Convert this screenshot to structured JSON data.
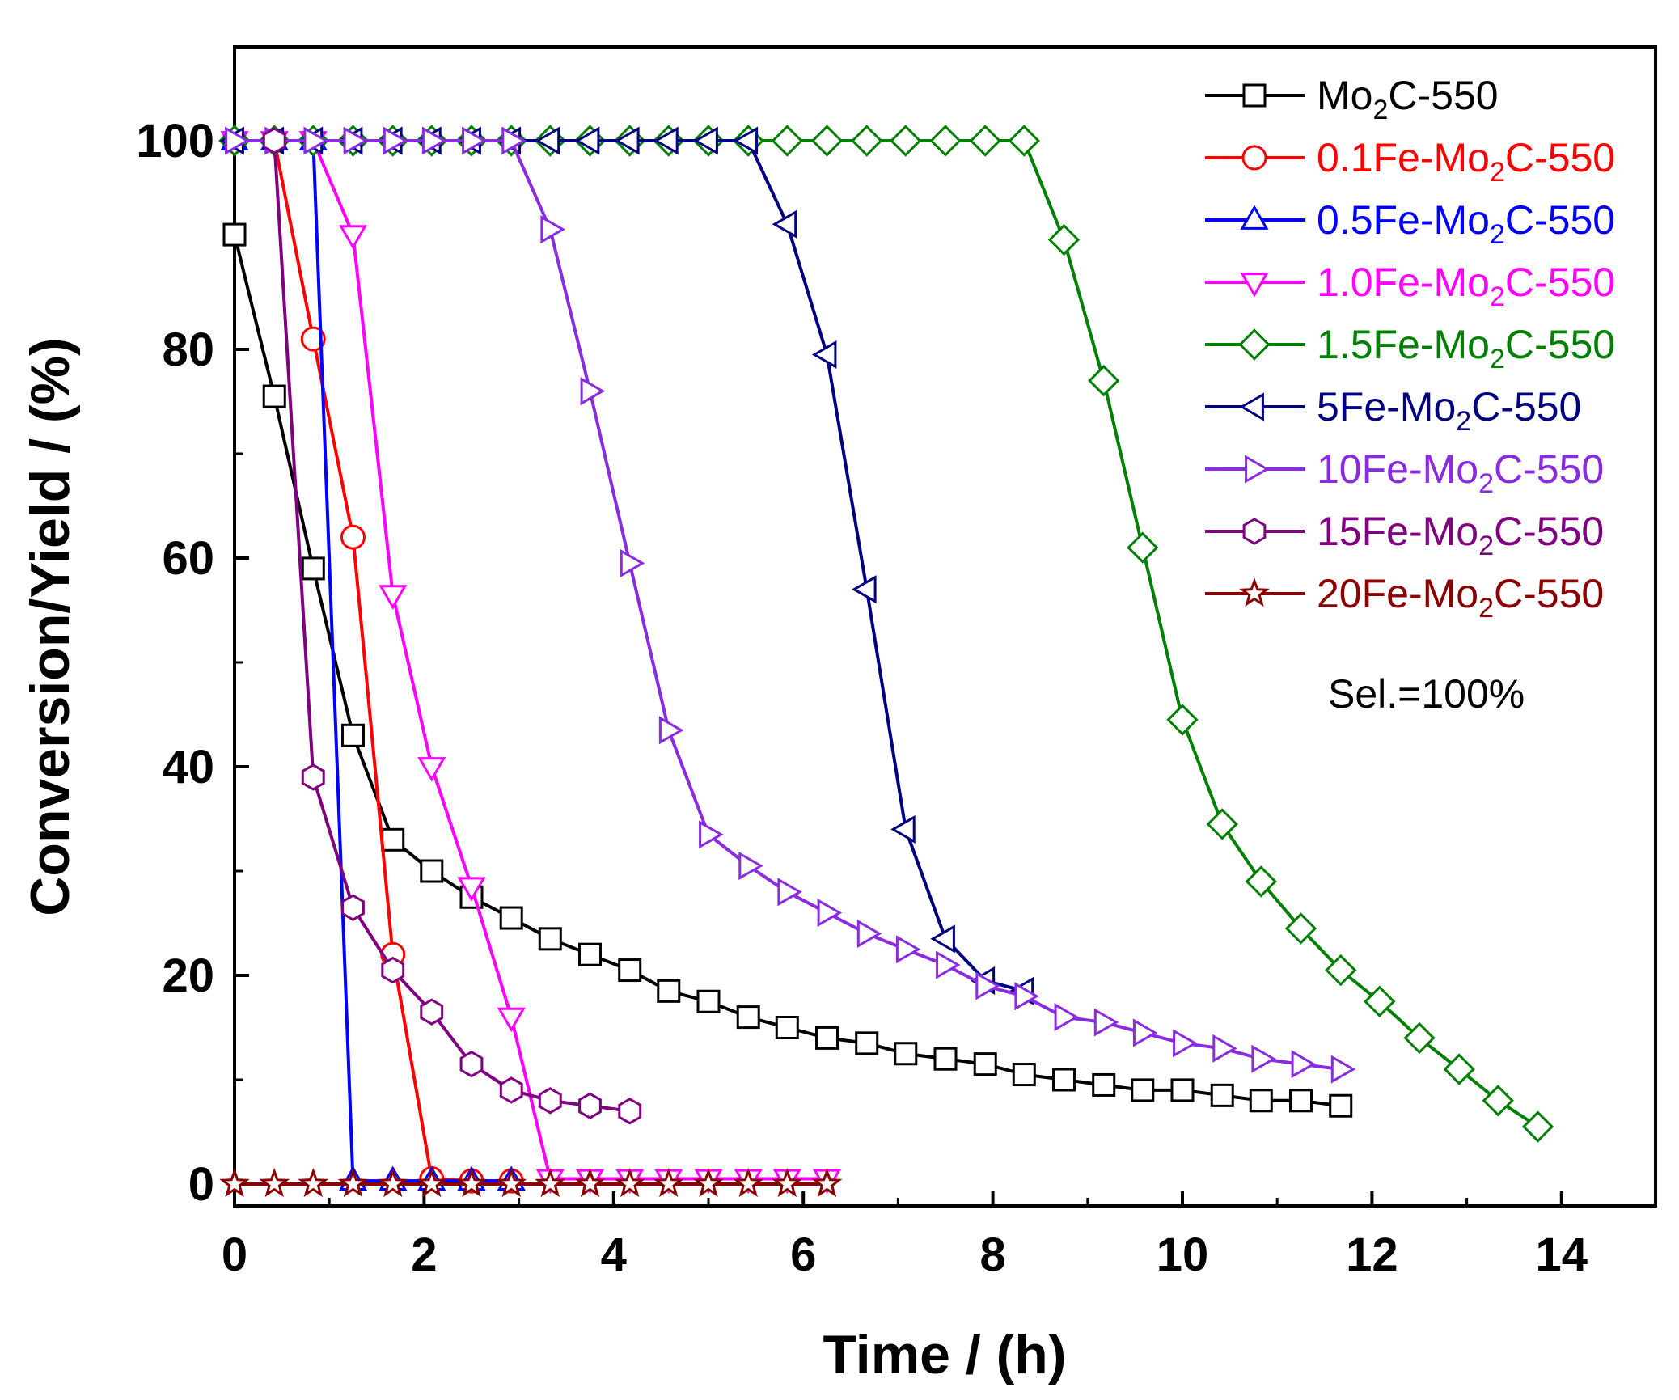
{
  "chart_data": {
    "type": "line",
    "xlabel": "Time / (h)",
    "ylabel": "Conversion/Yield / (%)",
    "xlim": [
      0,
      15
    ],
    "ylim": [
      -3,
      110
    ],
    "xticks": [
      "0",
      "2",
      "4",
      "6",
      "8",
      "10",
      "12",
      "14"
    ],
    "yticks": [
      "0",
      "20",
      "40",
      "60",
      "80",
      "100"
    ],
    "annotation": "Sel.=100%",
    "series": [
      {
        "name": "Mo2C-550",
        "label_prefix": "Mo",
        "label_sub": "2",
        "label_suffix": "C-550",
        "color": "#000000",
        "marker": "square",
        "marker_fill": "#ffffff",
        "x": [
          0,
          0.42,
          0.83,
          1.25,
          1.67,
          2.08,
          2.5,
          2.92,
          3.33,
          3.75,
          4.17,
          4.58,
          5.0,
          5.42,
          5.83,
          6.25,
          6.67,
          7.08,
          7.5,
          7.92,
          8.33,
          8.75,
          9.17,
          9.58,
          10.0,
          10.42,
          10.83,
          11.25,
          11.67
        ],
        "y": [
          91,
          75.5,
          59,
          43,
          33,
          30,
          27.5,
          25.5,
          23.5,
          22,
          20.5,
          18.5,
          17.5,
          16,
          15,
          14,
          13.5,
          12.5,
          12,
          11.5,
          10.5,
          10,
          9.5,
          9,
          9,
          8.5,
          8,
          8,
          7.5
        ]
      },
      {
        "name": "0.1Fe-Mo2C-550",
        "label_prefix": "0.1Fe-Mo",
        "label_sub": "2",
        "label_suffix": "C-550",
        "color": "#ff0000",
        "marker": "circle",
        "marker_fill": "#ffffff",
        "x": [
          0,
          0.42,
          0.83,
          1.25,
          1.67,
          2.08,
          2.5,
          2.92
        ],
        "y": [
          100,
          100,
          81,
          62,
          22,
          0.5,
          0.3,
          0.3
        ]
      },
      {
        "name": "0.5Fe-Mo2C-550",
        "label_prefix": "0.5Fe-Mo",
        "label_sub": "2",
        "label_suffix": "C-550",
        "color": "#0000ff",
        "marker": "triangle-up",
        "marker_fill": "#ffffff",
        "x": [
          0,
          0.42,
          0.83,
          1.25,
          1.67,
          2.08,
          2.5,
          2.92
        ],
        "y": [
          100,
          100,
          100,
          0.3,
          0.3,
          0.3,
          0.3,
          0.3
        ]
      },
      {
        "name": "1.0Fe-Mo2C-550",
        "label_prefix": "1.0Fe-Mo",
        "label_sub": "2",
        "label_suffix": "C-550",
        "color": "#ff00ff",
        "marker": "triangle-down",
        "marker_fill": "#ffffff",
        "x": [
          0,
          0.42,
          0.83,
          1.25,
          1.67,
          2.08,
          2.5,
          2.92,
          3.33,
          3.75,
          4.17,
          4.58,
          5.0,
          5.42,
          5.83,
          6.25
        ],
        "y": [
          100,
          100,
          100,
          91,
          56.5,
          40,
          28.5,
          16,
          0.5,
          0.5,
          0.5,
          0.5,
          0.5,
          0.5,
          0.5,
          0.5
        ]
      },
      {
        "name": "1.5Fe-Mo2C-550",
        "label_prefix": "1.5Fe-Mo",
        "label_sub": "2",
        "label_suffix": "C-550",
        "color": "#008000",
        "marker": "diamond",
        "marker_fill": "#ffffff",
        "x": [
          0,
          0.42,
          0.83,
          1.25,
          1.67,
          2.08,
          2.5,
          2.92,
          3.33,
          3.75,
          4.17,
          4.58,
          5.0,
          5.42,
          5.83,
          6.25,
          6.67,
          7.08,
          7.5,
          7.92,
          8.33,
          8.75,
          9.17,
          9.58,
          10.0,
          10.42,
          10.83,
          11.25,
          11.67,
          12.08,
          12.5,
          12.92,
          13.33,
          13.75
        ],
        "y": [
          100,
          100,
          100,
          100,
          100,
          100,
          100,
          100,
          100,
          100,
          100,
          100,
          100,
          100,
          100,
          100,
          100,
          100,
          100,
          100,
          100,
          90.5,
          77,
          61,
          44.5,
          34.5,
          29,
          24.5,
          20.5,
          17.5,
          14,
          11,
          8,
          5.5
        ]
      },
      {
        "name": "5Fe-Mo2C-550",
        "label_prefix": "5Fe-Mo",
        "label_sub": "2",
        "label_suffix": "C-550",
        "color": "#000080",
        "marker": "triangle-left",
        "marker_fill": "#ffffff",
        "x": [
          0,
          0.42,
          0.83,
          1.25,
          1.67,
          2.08,
          2.5,
          2.92,
          3.33,
          3.75,
          4.17,
          4.58,
          5.0,
          5.42,
          5.83,
          6.25,
          6.67,
          7.08,
          7.5,
          7.92,
          8.33
        ],
        "y": [
          100,
          100,
          100,
          100,
          100,
          100,
          100,
          100,
          100,
          100,
          100,
          100,
          100,
          100,
          92,
          79.5,
          57,
          34,
          23.5,
          19.5,
          18.5
        ]
      },
      {
        "name": "10Fe-Mo2C-550",
        "label_prefix": "10Fe-Mo",
        "label_sub": "2",
        "label_suffix": "C-550",
        "color": "#8a2be2",
        "marker": "triangle-right",
        "marker_fill": "#ffffff",
        "x": [
          0,
          0.42,
          0.83,
          1.25,
          1.67,
          2.08,
          2.5,
          2.92,
          3.33,
          3.75,
          4.17,
          4.58,
          5.0,
          5.42,
          5.83,
          6.25,
          6.67,
          7.08,
          7.5,
          7.92,
          8.33,
          8.75,
          9.17,
          9.58,
          10.0,
          10.42,
          10.83,
          11.25,
          11.67
        ],
        "y": [
          100,
          100,
          100,
          100,
          100,
          100,
          100,
          100,
          91.5,
          76,
          59.5,
          43.5,
          33.5,
          30.5,
          28,
          26,
          24,
          22.5,
          21,
          19,
          18,
          16,
          15.5,
          14.5,
          13.5,
          13,
          12,
          11.5,
          11
        ]
      },
      {
        "name": "15Fe-Mo2C-550",
        "label_prefix": "15Fe-Mo",
        "label_sub": "2",
        "label_suffix": "C-550",
        "color": "#800080",
        "marker": "hexagon",
        "marker_fill": "#ffffff",
        "x": [
          0.42,
          0.83,
          1.25,
          1.67,
          2.08,
          2.5,
          2.92,
          3.33,
          3.75,
          4.17
        ],
        "y": [
          100,
          39,
          26.5,
          20.5,
          16.5,
          11.5,
          9,
          8,
          7.5,
          7
        ]
      },
      {
        "name": "20Fe-Mo2C-550",
        "label_prefix": "20Fe-Mo",
        "label_sub": "2",
        "label_suffix": "C-550",
        "color": "#8b0000",
        "marker": "star",
        "marker_fill": "#ffffff",
        "x": [
          0,
          0.42,
          0.83,
          1.25,
          1.67,
          2.08,
          2.5,
          2.92,
          3.33,
          3.75,
          4.17,
          4.58,
          5.0,
          5.42,
          5.83,
          6.25
        ],
        "y": [
          0,
          0,
          0,
          0,
          0,
          0,
          0,
          0,
          0,
          0,
          0,
          0,
          0,
          0,
          0,
          0
        ]
      }
    ]
  }
}
